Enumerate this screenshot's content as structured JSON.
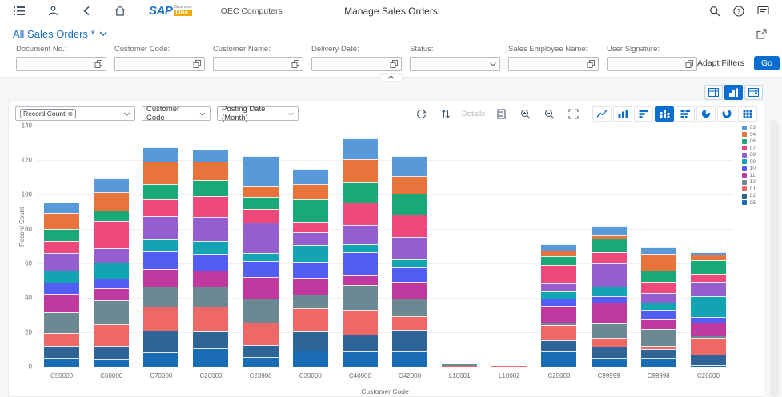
{
  "header": {
    "logo": {
      "sap": "SAP",
      "business": "Business",
      "one": "One"
    },
    "company": "OEC Computers",
    "title": "Manage Sales Orders"
  },
  "variant": {
    "title": "All Sales Orders *"
  },
  "filters": {
    "fields": [
      {
        "label": "Document No.:",
        "value": "",
        "type": "valuehelp"
      },
      {
        "label": "Customer Code:",
        "value": "",
        "type": "valuehelp"
      },
      {
        "label": "Customer Name:",
        "value": "",
        "type": "valuehelp"
      },
      {
        "label": "Delivery Date:",
        "value": "",
        "type": "valuehelp"
      },
      {
        "label": "Status:",
        "value": "",
        "type": "select"
      },
      {
        "label": "Sales Employee Name:",
        "value": "",
        "type": "valuehelp"
      },
      {
        "label": "User Signature:",
        "value": "",
        "type": "valuehelp"
      }
    ],
    "adapt_filters_label": "Adapt Filters",
    "go_label": "Go"
  },
  "chart_toolbar": {
    "measure_selector_token": "Record Count",
    "dimension_selector": "Customer Code",
    "secondary_dimension_selector": "Posting Date (Month)",
    "details_label": "Details"
  },
  "chart_data": {
    "type": "bar",
    "subtype": "stacked-column",
    "title": "",
    "xlabel": "Customer Code",
    "ylabel": "Record Count",
    "ylim": [
      0,
      140
    ],
    "ytick_step": 20,
    "grid": true,
    "legend_position": "right",
    "categories": [
      "C50000",
      "C60000",
      "C70000",
      "C20000",
      "C23900",
      "C30000",
      "C40000",
      "C42000",
      "L10001",
      "L10002",
      "C25000",
      "C99999",
      "C99998",
      "C26000"
    ],
    "series": [
      {
        "name": "03",
        "color": "#5899DA",
        "values": [
          6,
          8,
          8.5,
          7,
          18,
          9,
          12,
          12,
          0,
          0,
          3.5,
          5.5,
          4,
          1.5
        ]
      },
      {
        "name": "04",
        "color": "#E8743B",
        "values": [
          9.5,
          11,
          13,
          10.5,
          6,
          9,
          13.5,
          10,
          0,
          0,
          3.5,
          2,
          9.5,
          3
        ]
      },
      {
        "name": "06",
        "color": "#19A979",
        "values": [
          7,
          6,
          9,
          9.5,
          7,
          13,
          11.5,
          12,
          0,
          0,
          5,
          8,
          6.5,
          8
        ]
      },
      {
        "name": "07",
        "color": "#ED4A7B",
        "values": [
          7,
          15.5,
          9.5,
          12,
          8,
          6,
          13,
          13,
          0,
          0,
          10.5,
          6.5,
          6.5,
          4.5
        ]
      },
      {
        "name": "08",
        "color": "#945ECF",
        "values": [
          10,
          8.5,
          13.5,
          14,
          17.5,
          7.5,
          11.5,
          13,
          0,
          0,
          5,
          13.5,
          6,
          8.5
        ]
      },
      {
        "name": "09",
        "color": "#13A4B4",
        "values": [
          7,
          9.5,
          7,
          7.5,
          4.5,
          9.5,
          4.5,
          5,
          0,
          0,
          4,
          5.5,
          4,
          12
        ]
      },
      {
        "name": "10",
        "color": "#525DF4",
        "values": [
          6.5,
          5.5,
          10.5,
          9.5,
          9.5,
          9.5,
          13.5,
          8,
          0,
          0,
          4,
          4,
          5.5,
          3.5
        ]
      },
      {
        "name": "11",
        "color": "#BF399E",
        "values": [
          11,
          7,
          10,
          9.5,
          12.5,
          9.5,
          5.5,
          10,
          0,
          0,
          10,
          12,
          5.5,
          8
        ]
      },
      {
        "name": "12",
        "color": "#6C8893",
        "values": [
          12,
          14,
          11.5,
          11.5,
          14,
          8,
          14.5,
          10,
          1,
          0,
          1.5,
          8.5,
          10,
          1
        ]
      },
      {
        "name": "01",
        "color": "#EE6868",
        "values": [
          7.5,
          12.5,
          14,
          14.5,
          13,
          13.5,
          14.5,
          8,
          1,
          1,
          8.5,
          5,
          2,
          9.5
        ]
      },
      {
        "name": "02",
        "color": "#2F6497",
        "values": [
          7,
          8,
          12.5,
          10,
          7,
          11,
          9.5,
          12.5,
          0,
          0,
          6.5,
          6.5,
          5,
          6
        ]
      },
      {
        "name": "05",
        "color": "#1A6CB5",
        "values": [
          5.5,
          4.5,
          9,
          11,
          6,
          10,
          9.5,
          9.5,
          0,
          0,
          9.5,
          5.5,
          5.5,
          1.5
        ]
      }
    ]
  },
  "colors": {
    "accent": "#0a6ed1",
    "icon_dark": "#3b5268",
    "icon_blue": "#0a6ed1",
    "go_button": "#0a6ed1"
  }
}
